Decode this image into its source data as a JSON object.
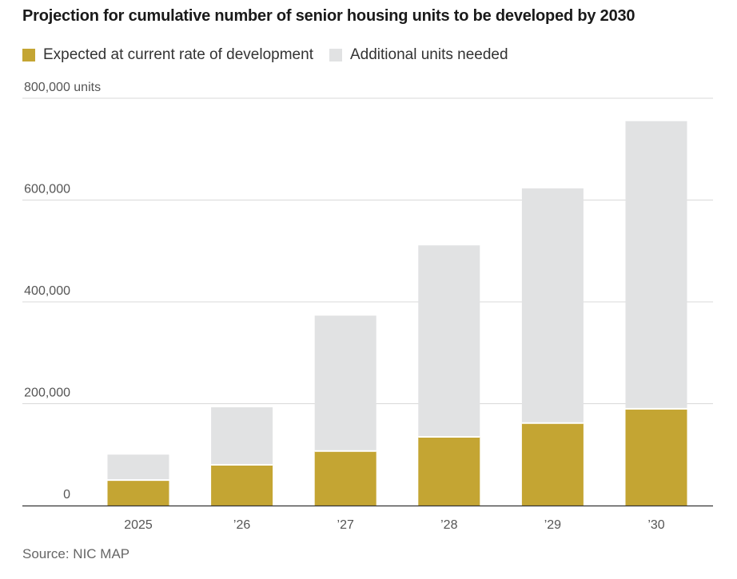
{
  "title": "Projection for cumulative number of senior housing units to be developed by 2030",
  "source": "Source: NIC MAP",
  "legend": [
    {
      "label": "Expected at current rate of development",
      "color": "#c4a533"
    },
    {
      "label": "Additional units needed",
      "color": "#e1e2e3"
    }
  ],
  "chart_data": {
    "type": "bar",
    "stacked": true,
    "categories": [
      "2025",
      "’26",
      "’27",
      "’28",
      "’29",
      "’30"
    ],
    "series": [
      {
        "name": "Expected at current rate of development",
        "color": "#c4a533",
        "values": [
          50000,
          80000,
          107000,
          135000,
          162000,
          190000
        ]
      },
      {
        "name": "Additional units needed",
        "color": "#e1e2e3",
        "values": [
          50000,
          113000,
          266000,
          376000,
          461000,
          565000
        ]
      }
    ],
    "yticks": [
      0,
      200000,
      400000,
      600000,
      800000
    ],
    "ytick_labels": [
      "0",
      "200,000",
      "400,000",
      "600,000",
      "800,000 units"
    ],
    "ylim": [
      0,
      800000
    ],
    "grid": true
  }
}
